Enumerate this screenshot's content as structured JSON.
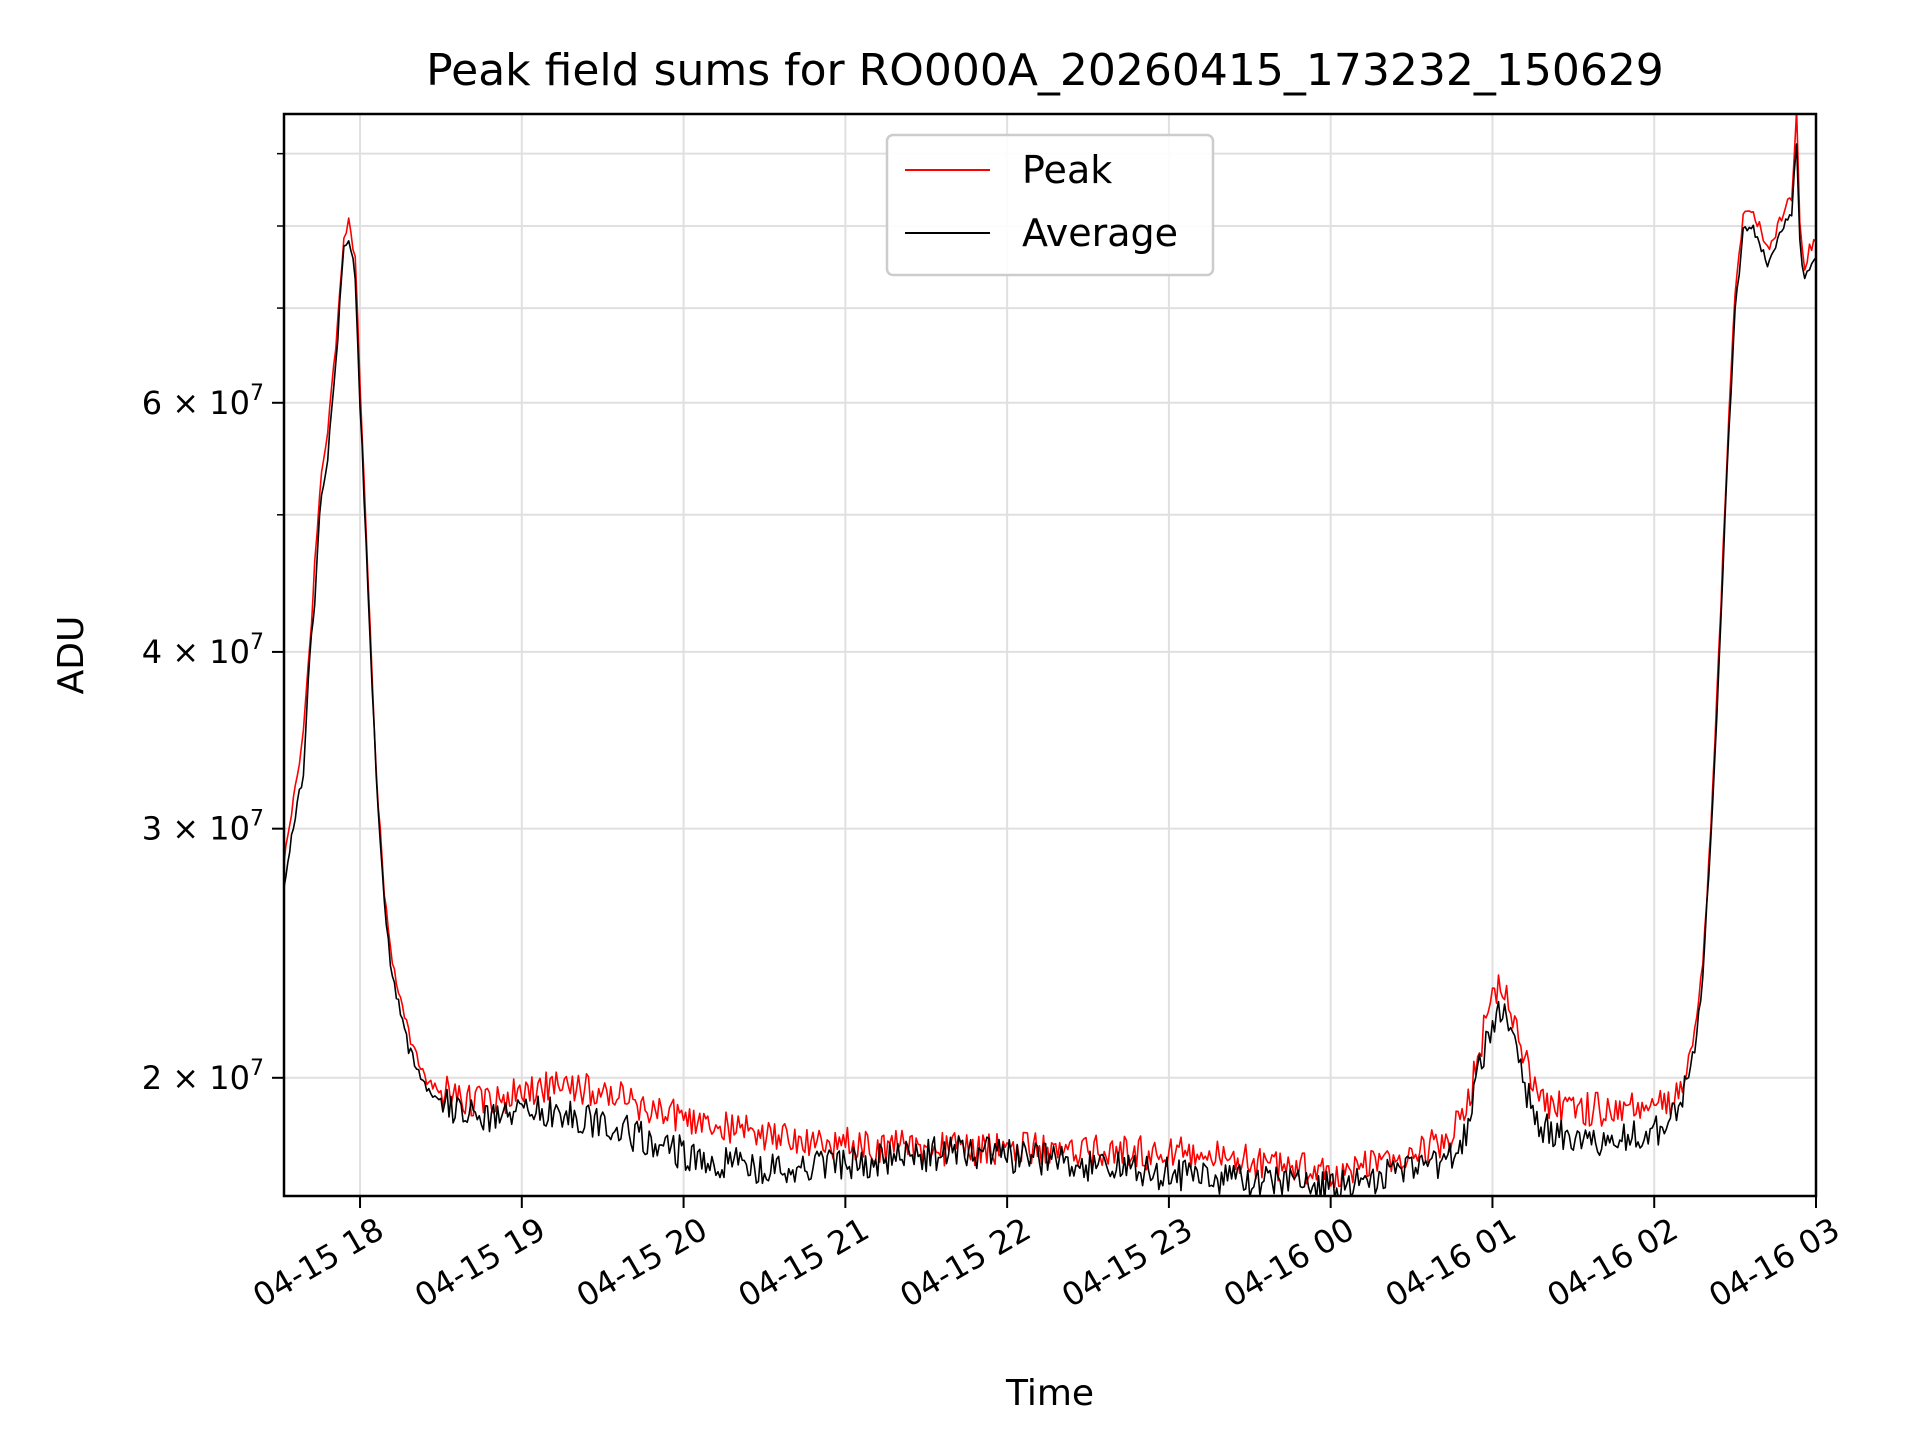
{
  "chart_data": {
    "type": "line",
    "title": "Peak field sums for RO000A_20260415_173232_150629",
    "xlabel": "Time",
    "ylabel": "ADU",
    "yscale": "log",
    "xlim": [
      17.53,
      27.0
    ],
    "ylim": [
      16500000,
      96000000
    ],
    "grid": true,
    "legend_position": "upper center",
    "x_ticks": [
      {
        "value": 18,
        "label": "04-15 18"
      },
      {
        "value": 19,
        "label": "04-15 19"
      },
      {
        "value": 20,
        "label": "04-15 20"
      },
      {
        "value": 21,
        "label": "04-15 21"
      },
      {
        "value": 22,
        "label": "04-15 22"
      },
      {
        "value": 23,
        "label": "04-15 23"
      },
      {
        "value": 24,
        "label": "04-16 00"
      },
      {
        "value": 25,
        "label": "04-16 01"
      },
      {
        "value": 26,
        "label": "04-16 02"
      },
      {
        "value": 27,
        "label": "04-16 03"
      }
    ],
    "y_major_ticks": [
      {
        "value": 20000000,
        "mantissa": "2",
        "exponent": "7"
      },
      {
        "value": 30000000,
        "mantissa": "3",
        "exponent": "7"
      },
      {
        "value": 40000000,
        "mantissa": "4",
        "exponent": "7"
      },
      {
        "value": 60000000,
        "mantissa": "6",
        "exponent": "7"
      }
    ],
    "y_minor_ticks": [
      50000000,
      70000000,
      80000000,
      90000000
    ],
    "series": [
      {
        "name": "Peak",
        "color": "#ff0000",
        "x": [
          17.53,
          17.6,
          17.65,
          17.68,
          17.7,
          17.72,
          17.75,
          17.8,
          17.85,
          17.9,
          17.93,
          17.97,
          18.0,
          18.05,
          18.1,
          18.15,
          18.2,
          18.3,
          18.4,
          18.5,
          18.6,
          18.7,
          18.8,
          18.9,
          19.0,
          19.2,
          19.4,
          19.6,
          19.8,
          20.0,
          20.2,
          20.4,
          20.6,
          20.8,
          21.0,
          21.2,
          21.4,
          21.6,
          21.8,
          22.0,
          22.2,
          22.4,
          22.6,
          22.8,
          23.0,
          23.2,
          23.4,
          23.6,
          23.8,
          24.0,
          24.2,
          24.4,
          24.6,
          24.75,
          24.85,
          24.92,
          25.0,
          25.05,
          25.1,
          25.15,
          25.2,
          25.3,
          25.4,
          25.6,
          25.8,
          26.0,
          26.1,
          26.15,
          26.2,
          26.25,
          26.3,
          26.35,
          26.4,
          26.45,
          26.5,
          26.55,
          26.6,
          26.65,
          26.7,
          26.75,
          26.8,
          26.85,
          26.88,
          26.9,
          26.93,
          26.96,
          27.0
        ],
        "y": [
          28500000,
          32000000,
          35000000,
          39000000,
          42000000,
          46000000,
          52000000,
          57000000,
          66000000,
          79000000,
          80500000,
          76000000,
          62000000,
          45000000,
          33000000,
          27000000,
          24000000,
          21500000,
          20000000,
          19600000,
          19400000,
          19300000,
          19300000,
          19400000,
          19500000,
          19700000,
          19600000,
          19400000,
          19000000,
          18700000,
          18500000,
          18300000,
          18100000,
          18000000,
          18000000,
          17900000,
          17900000,
          17800000,
          17800000,
          17800000,
          17800000,
          17800000,
          17800000,
          17700000,
          17700000,
          17600000,
          17500000,
          17400000,
          17300000,
          17100000,
          17300000,
          17600000,
          17900000,
          18200000,
          19200000,
          21000000,
          22800000,
          23200000,
          22800000,
          21800000,
          20500000,
          19400000,
          19100000,
          19000000,
          19000000,
          19100000,
          19300000,
          19600000,
          20300000,
          21500000,
          24000000,
          30000000,
          40000000,
          55000000,
          72000000,
          81000000,
          82000000,
          80000000,
          77000000,
          79000000,
          82000000,
          84000000,
          96000000,
          80000000,
          75000000,
          77000000,
          78000000
        ]
      },
      {
        "name": "Average",
        "color": "#000000",
        "x": [
          17.53,
          17.6,
          17.65,
          17.68,
          17.7,
          17.72,
          17.75,
          17.8,
          17.85,
          17.9,
          17.93,
          17.97,
          18.0,
          18.05,
          18.1,
          18.15,
          18.2,
          18.3,
          18.4,
          18.5,
          18.6,
          18.7,
          18.8,
          18.9,
          19.0,
          19.2,
          19.4,
          19.6,
          19.8,
          20.0,
          20.2,
          20.4,
          20.6,
          20.8,
          21.0,
          21.2,
          21.4,
          21.6,
          21.8,
          22.0,
          22.2,
          22.4,
          22.6,
          22.8,
          23.0,
          23.2,
          23.4,
          23.6,
          23.8,
          24.0,
          24.2,
          24.4,
          24.6,
          24.75,
          24.85,
          24.92,
          25.0,
          25.05,
          25.1,
          25.15,
          25.2,
          25.3,
          25.4,
          25.6,
          25.8,
          26.0,
          26.1,
          26.15,
          26.2,
          26.25,
          26.3,
          26.35,
          26.4,
          26.45,
          26.5,
          26.55,
          26.6,
          26.65,
          26.7,
          26.75,
          26.8,
          26.85,
          26.88,
          26.9,
          26.93,
          26.96,
          27.0
        ],
        "y": [
          27500000,
          30500000,
          33000000,
          38000000,
          41000000,
          43000000,
          50000000,
          55000000,
          64000000,
          77000000,
          78500000,
          74000000,
          60000000,
          44000000,
          32500000,
          26500000,
          23500000,
          21000000,
          19700000,
          19200000,
          19000000,
          18900000,
          18800000,
          18800000,
          18900000,
          18900000,
          18700000,
          18400000,
          18000000,
          17700000,
          17500000,
          17300000,
          17200000,
          17300000,
          17400000,
          17500000,
          17600000,
          17700000,
          17700000,
          17600000,
          17500000,
          17400000,
          17300000,
          17200000,
          17100000,
          17000000,
          16900000,
          16900000,
          16800000,
          16700000,
          16900000,
          17100000,
          17300000,
          17600000,
          18500000,
          20300000,
          22000000,
          22300000,
          21800000,
          20800000,
          19600000,
          18500000,
          18200000,
          18100000,
          18100000,
          18300000,
          18600000,
          19000000,
          19800000,
          21000000,
          23500000,
          29500000,
          39000000,
          54000000,
          70000000,
          79000000,
          80000000,
          78000000,
          75000000,
          77000000,
          80000000,
          82000000,
          92000000,
          78000000,
          73000000,
          75000000,
          76000000
        ]
      }
    ]
  }
}
